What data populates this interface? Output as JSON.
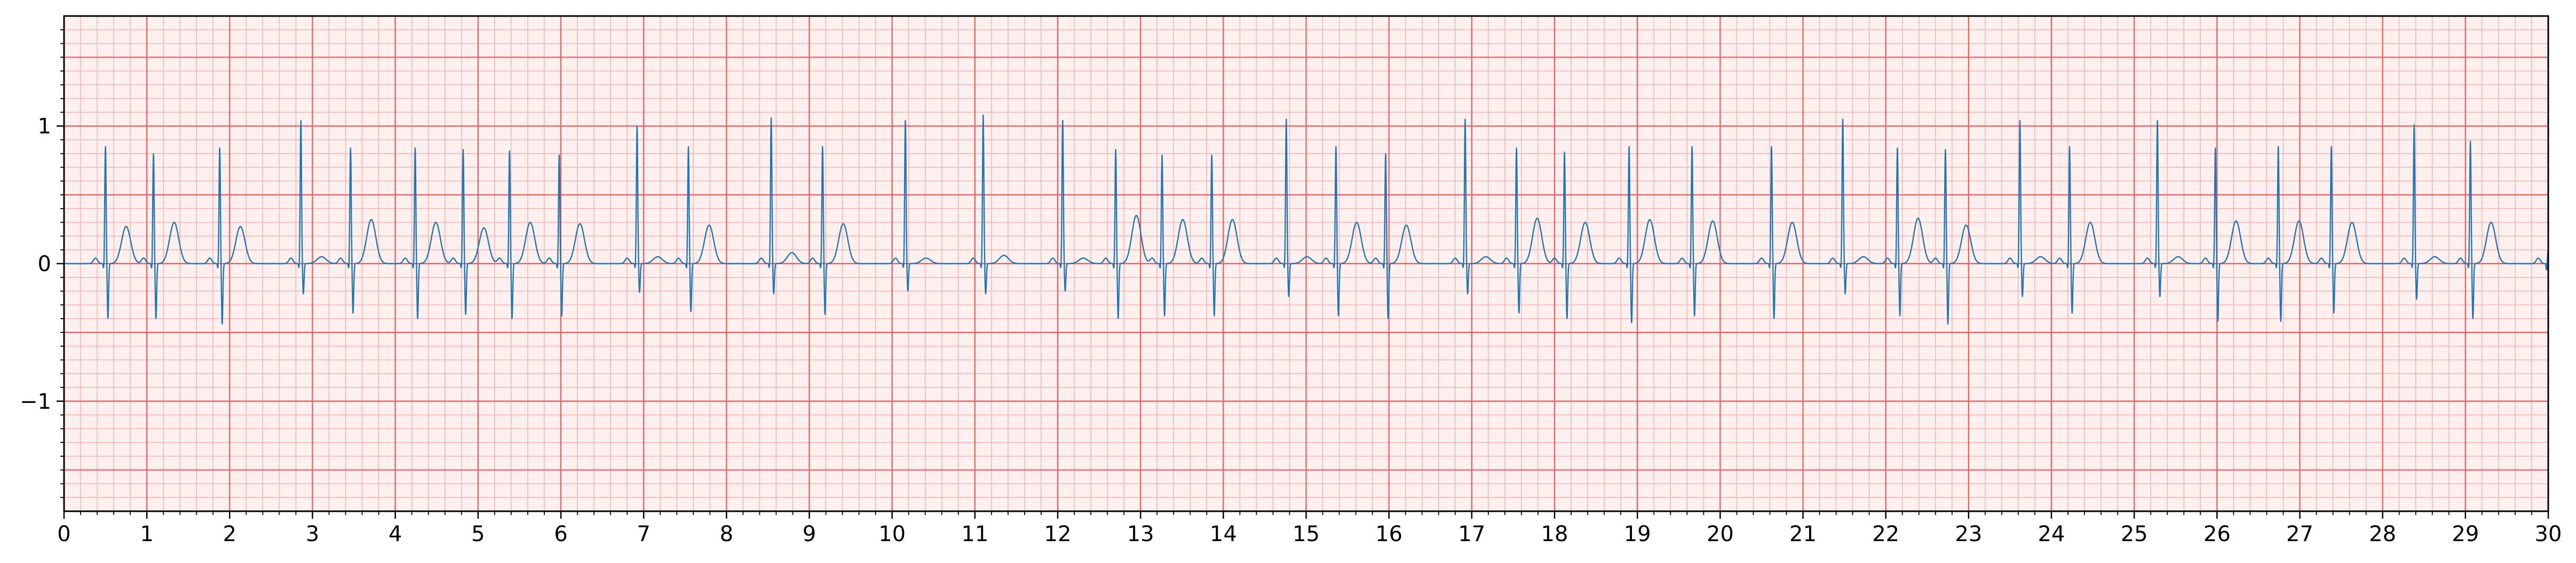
{
  "chart_data": {
    "type": "line",
    "title": "",
    "xlabel": "",
    "ylabel": "",
    "xlim": [
      0,
      30
    ],
    "ylim": [
      -1.8,
      1.8
    ],
    "x_ticks": [
      "0",
      "1",
      "2",
      "3",
      "4",
      "5",
      "6",
      "7",
      "8",
      "9",
      "10",
      "11",
      "12",
      "13",
      "14",
      "15",
      "16",
      "17",
      "18",
      "19",
      "20",
      "21",
      "22",
      "23",
      "24",
      "25",
      "26",
      "27",
      "28",
      "29",
      "30"
    ],
    "y_ticks": [
      {
        "value": 1,
        "label": "1"
      },
      {
        "value": 0,
        "label": "0"
      },
      {
        "value": -1,
        "label": "−1"
      }
    ],
    "grid": {
      "major_x_step": 1,
      "major_y_step": 0.5,
      "minor_x_step": 0.2,
      "minor_y_step": 0.1,
      "major_color": "#f05a5a",
      "minor_color": "#f7b2b2",
      "background": "#fff0f0"
    },
    "series": [
      {
        "color": "#1f77b4",
        "beats": [
          {
            "t": 0.5,
            "r": 0.85,
            "s": -0.4,
            "t_amp": 0.27
          },
          {
            "t": 1.08,
            "r": 0.8,
            "s": -0.4,
            "t_amp": 0.3
          },
          {
            "t": 1.88,
            "r": 0.84,
            "s": -0.44,
            "t_amp": 0.27
          },
          {
            "t": 2.86,
            "r": 1.04,
            "s": -0.22,
            "t_amp": 0.05
          },
          {
            "t": 3.46,
            "r": 0.84,
            "s": -0.36,
            "t_amp": 0.32
          },
          {
            "t": 4.24,
            "r": 0.84,
            "s": -0.4,
            "t_amp": 0.3
          },
          {
            "t": 4.82,
            "r": 0.83,
            "s": -0.37,
            "t_amp": 0.26
          },
          {
            "t": 5.38,
            "r": 0.82,
            "s": -0.4,
            "t_amp": 0.3
          },
          {
            "t": 5.98,
            "r": 0.79,
            "s": -0.38,
            "t_amp": 0.29
          },
          {
            "t": 6.92,
            "r": 1.0,
            "s": -0.21,
            "t_amp": 0.05
          },
          {
            "t": 7.54,
            "r": 0.85,
            "s": -0.35,
            "t_amp": 0.28
          },
          {
            "t": 8.54,
            "r": 1.06,
            "s": -0.22,
            "t_amp": 0.08
          },
          {
            "t": 9.16,
            "r": 0.85,
            "s": -0.37,
            "t_amp": 0.29
          },
          {
            "t": 10.16,
            "r": 1.04,
            "s": -0.2,
            "t_amp": 0.04
          },
          {
            "t": 11.1,
            "r": 1.08,
            "s": -0.22,
            "t_amp": 0.06
          },
          {
            "t": 12.06,
            "r": 1.04,
            "s": -0.2,
            "t_amp": 0.04
          },
          {
            "t": 12.7,
            "r": 0.83,
            "s": -0.4,
            "t_amp": 0.35
          },
          {
            "t": 13.26,
            "r": 0.79,
            "s": -0.38,
            "t_amp": 0.32
          },
          {
            "t": 13.86,
            "r": 0.79,
            "s": -0.38,
            "t_amp": 0.32
          },
          {
            "t": 14.76,
            "r": 1.05,
            "s": -0.24,
            "t_amp": 0.05
          },
          {
            "t": 15.36,
            "r": 0.85,
            "s": -0.38,
            "t_amp": 0.3
          },
          {
            "t": 15.96,
            "r": 0.8,
            "s": -0.4,
            "t_amp": 0.28
          },
          {
            "t": 16.92,
            "r": 1.05,
            "s": -0.22,
            "t_amp": 0.05
          },
          {
            "t": 17.54,
            "r": 0.84,
            "s": -0.36,
            "t_amp": 0.33
          },
          {
            "t": 18.12,
            "r": 0.81,
            "s": -0.4,
            "t_amp": 0.3
          },
          {
            "t": 18.9,
            "r": 0.85,
            "s": -0.43,
            "t_amp": 0.32
          },
          {
            "t": 19.66,
            "r": 0.85,
            "s": -0.38,
            "t_amp": 0.31
          },
          {
            "t": 20.62,
            "r": 0.85,
            "s": -0.4,
            "t_amp": 0.3
          },
          {
            "t": 21.48,
            "r": 1.05,
            "s": -0.22,
            "t_amp": 0.05
          },
          {
            "t": 22.14,
            "r": 0.84,
            "s": -0.38,
            "t_amp": 0.33
          },
          {
            "t": 22.72,
            "r": 0.83,
            "s": -0.44,
            "t_amp": 0.28
          },
          {
            "t": 23.62,
            "r": 1.04,
            "s": -0.24,
            "t_amp": 0.05
          },
          {
            "t": 24.22,
            "r": 0.85,
            "s": -0.36,
            "t_amp": 0.3
          },
          {
            "t": 25.28,
            "r": 1.04,
            "s": -0.24,
            "t_amp": 0.05
          },
          {
            "t": 25.98,
            "r": 0.84,
            "s": -0.42,
            "t_amp": 0.31
          },
          {
            "t": 26.74,
            "r": 0.85,
            "s": -0.42,
            "t_amp": 0.31
          },
          {
            "t": 27.38,
            "r": 0.85,
            "s": -0.36,
            "t_amp": 0.3
          },
          {
            "t": 28.38,
            "r": 1.01,
            "s": -0.26,
            "t_amp": 0.05
          },
          {
            "t": 29.06,
            "r": 0.89,
            "s": -0.4,
            "t_amp": 0.3
          },
          {
            "t": 30.0,
            "r": 0.1,
            "s": -0.15,
            "t_amp": 0.0
          }
        ]
      }
    ]
  }
}
